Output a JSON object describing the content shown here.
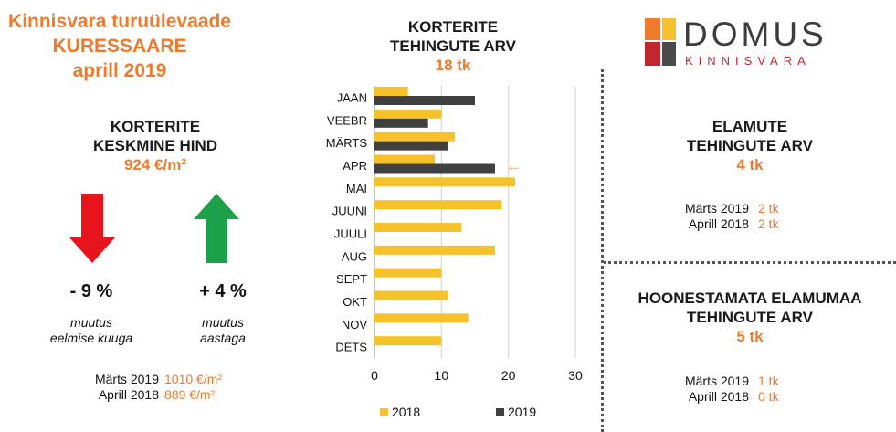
{
  "header": {
    "line1": "Kinnisvara turuülevaade",
    "line2": "KURESSAARE",
    "line3": "aprill 2019"
  },
  "avg_price": {
    "title1": "KORTERITE",
    "title2": "KESKMINE HIND",
    "value": "924 €/m²",
    "monthly_change": "- 9 %",
    "monthly_caption1": "muutus",
    "monthly_caption2": "eelmise kuuga",
    "yearly_change": "+ 4 %",
    "yearly_caption1": "muutus",
    "yearly_caption2": "aastaga",
    "compare": [
      {
        "label": "Märts 2019",
        "value": "1010 €/m²"
      },
      {
        "label": "Aprill 2018",
        "value": "889 €/m²"
      }
    ],
    "colors": {
      "down_arrow": "#e8141b",
      "up_arrow": "#1aa14a"
    }
  },
  "apartments": {
    "title1": "KORTERITE",
    "title2": "TEHINGUTE ARV",
    "value": "18 tk"
  },
  "houses": {
    "title1": "ELAMUTE",
    "title2": "TEHINGUTE ARV",
    "value": "4 tk",
    "compare": [
      {
        "label": "Märts 2019",
        "value": "2 tk"
      },
      {
        "label": "Aprill 2018",
        "value": "2 tk"
      }
    ]
  },
  "land": {
    "title1": "HOONESTAMATA ELAMUMAA",
    "title2": "TEHINGUTE ARV",
    "value": "5 tk",
    "compare": [
      {
        "label": "Märts 2019",
        "value": "1 tk"
      },
      {
        "label": "Aprill 2018",
        "value": "0 tk"
      }
    ]
  },
  "logo": {
    "name": "DOMUS",
    "sub": "KINNISVARA",
    "colors": [
      "#f07a2c",
      "#f6c22b",
      "#c0282d",
      "#4a4a4a"
    ]
  },
  "chart_data": {
    "type": "bar",
    "orientation": "horizontal",
    "categories": [
      "JAAN",
      "VEEBR",
      "MÄRTS",
      "APR",
      "MAI",
      "JUUNI",
      "JUULI",
      "AUG",
      "SEPT",
      "OKT",
      "NOV",
      "DETS"
    ],
    "series": [
      {
        "name": "2018",
        "color": "#f6c22b",
        "values": [
          5,
          10,
          12,
          9,
          21,
          19,
          13,
          18,
          10,
          11,
          14,
          10
        ]
      },
      {
        "name": "2019",
        "color": "#404040",
        "values": [
          15,
          8,
          11,
          18,
          null,
          null,
          null,
          null,
          null,
          null,
          null,
          null
        ]
      }
    ],
    "xlim": [
      0,
      30
    ],
    "xticks": [
      0,
      10,
      20,
      30
    ],
    "grid": true,
    "legend_position": "bottom",
    "annotation": {
      "category": "APR",
      "symbol": "←",
      "color": "#f07a2c"
    }
  }
}
